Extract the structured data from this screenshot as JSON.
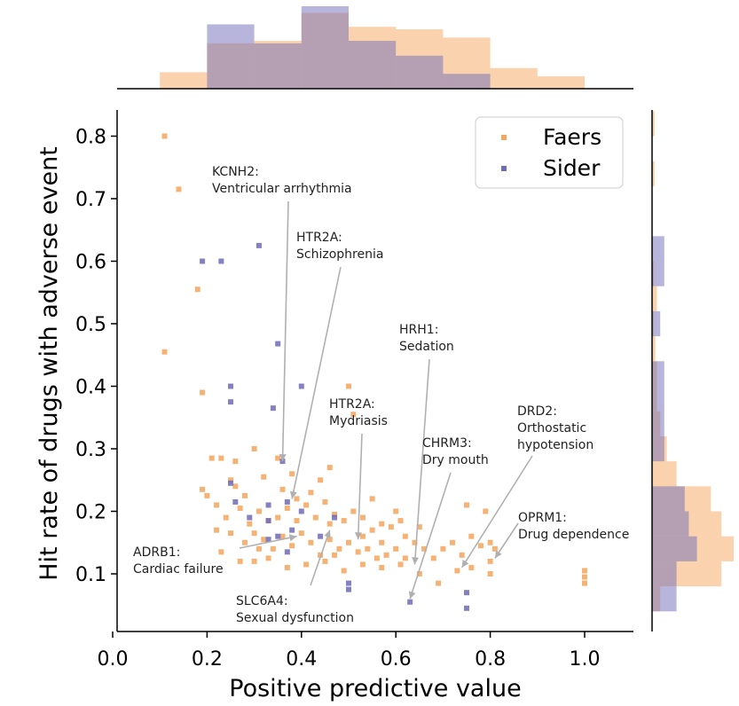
{
  "chart_data": {
    "type": "scatter",
    "xlabel": "Positive predictive value",
    "ylabel": "Hit rate of drugs with adverse event",
    "xlim": [
      0.0,
      1.1
    ],
    "ylim": [
      0.05,
      0.85
    ],
    "x_ticks": [
      "0.0",
      "0.2",
      "0.4",
      "0.6",
      "0.8",
      "1.0"
    ],
    "y_ticks": [
      "0.1",
      "0.2",
      "0.3",
      "0.4",
      "0.5",
      "0.6",
      "0.7",
      "0.8"
    ],
    "grid": false,
    "legend_position": "top-right",
    "series": [
      {
        "name": "Faers",
        "color": "#f5a55c",
        "points": [
          [
            0.11,
            0.8
          ],
          [
            0.14,
            0.715
          ],
          [
            0.18,
            0.555
          ],
          [
            0.11,
            0.455
          ],
          [
            0.19,
            0.39
          ],
          [
            0.21,
            0.285
          ],
          [
            0.23,
            0.285
          ],
          [
            0.25,
            0.25
          ],
          [
            0.26,
            0.28
          ],
          [
            0.28,
            0.225
          ],
          [
            0.3,
            0.3
          ],
          [
            0.32,
            0.255
          ],
          [
            0.35,
            0.285
          ],
          [
            0.38,
            0.26
          ],
          [
            0.44,
            0.25
          ],
          [
            0.46,
            0.27
          ],
          [
            0.5,
            0.4
          ],
          [
            0.51,
            0.355
          ],
          [
            0.2,
            0.225
          ],
          [
            0.22,
            0.21
          ],
          [
            0.24,
            0.19
          ],
          [
            0.27,
            0.205
          ],
          [
            0.29,
            0.18
          ],
          [
            0.31,
            0.2
          ],
          [
            0.33,
            0.185
          ],
          [
            0.35,
            0.19
          ],
          [
            0.37,
            0.205
          ],
          [
            0.39,
            0.185
          ],
          [
            0.41,
            0.21
          ],
          [
            0.43,
            0.19
          ],
          [
            0.45,
            0.215
          ],
          [
            0.47,
            0.195
          ],
          [
            0.49,
            0.185
          ],
          [
            0.51,
            0.2
          ],
          [
            0.53,
            0.19
          ],
          [
            0.55,
            0.17
          ],
          [
            0.57,
            0.18
          ],
          [
            0.59,
            0.175
          ],
          [
            0.61,
            0.185
          ],
          [
            0.22,
            0.17
          ],
          [
            0.25,
            0.165
          ],
          [
            0.28,
            0.15
          ],
          [
            0.3,
            0.165
          ],
          [
            0.32,
            0.155
          ],
          [
            0.34,
            0.14
          ],
          [
            0.36,
            0.16
          ],
          [
            0.38,
            0.145
          ],
          [
            0.4,
            0.165
          ],
          [
            0.42,
            0.15
          ],
          [
            0.44,
            0.13
          ],
          [
            0.46,
            0.155
          ],
          [
            0.48,
            0.14
          ],
          [
            0.5,
            0.15
          ],
          [
            0.52,
            0.135
          ],
          [
            0.54,
            0.14
          ],
          [
            0.56,
            0.125
          ],
          [
            0.58,
            0.13
          ],
          [
            0.6,
            0.14
          ],
          [
            0.62,
            0.125
          ],
          [
            0.64,
            0.15
          ],
          [
            0.66,
            0.14
          ],
          [
            0.68,
            0.125
          ],
          [
            0.7,
            0.14
          ],
          [
            0.72,
            0.15
          ],
          [
            0.74,
            0.13
          ],
          [
            0.76,
            0.16
          ],
          [
            0.78,
            0.145
          ],
          [
            0.8,
            0.15
          ],
          [
            0.81,
            0.14
          ],
          [
            0.3,
            0.12
          ],
          [
            0.33,
            0.125
          ],
          [
            0.37,
            0.11
          ],
          [
            0.41,
            0.115
          ],
          [
            0.45,
            0.12
          ],
          [
            0.49,
            0.105
          ],
          [
            0.53,
            0.115
          ],
          [
            0.57,
            0.11
          ],
          [
            0.61,
            0.115
          ],
          [
            0.65,
            0.1
          ],
          [
            0.69,
            0.085
          ],
          [
            0.73,
            0.105
          ],
          [
            0.76,
            0.11
          ],
          [
            0.8,
            0.12
          ],
          [
            0.55,
            0.22
          ],
          [
            0.6,
            0.2
          ],
          [
            0.75,
            0.21
          ],
          [
            0.79,
            0.2
          ],
          [
            0.62,
            0.16
          ],
          [
            0.46,
            0.18
          ],
          [
            0.42,
            0.23
          ],
          [
            0.36,
            0.235
          ],
          [
            0.26,
            0.24
          ],
          [
            0.39,
            0.22
          ],
          [
            0.53,
            0.16
          ],
          [
            0.57,
            0.15
          ],
          [
            1.0,
            0.105
          ],
          [
            1.0,
            0.095
          ],
          [
            1.0,
            0.085
          ],
          [
            0.8,
            0.1
          ],
          [
            0.47,
            0.13
          ],
          [
            0.27,
            0.12
          ],
          [
            0.31,
            0.14
          ],
          [
            0.23,
            0.135
          ],
          [
            0.19,
            0.235
          ],
          [
            0.65,
            0.175
          ]
        ]
      },
      {
        "name": "Sider",
        "color": "#6f6bb8",
        "points": [
          [
            0.19,
            0.6
          ],
          [
            0.23,
            0.6
          ],
          [
            0.31,
            0.625
          ],
          [
            0.35,
            0.468
          ],
          [
            0.4,
            0.4
          ],
          [
            0.25,
            0.4
          ],
          [
            0.25,
            0.375
          ],
          [
            0.34,
            0.365
          ],
          [
            0.36,
            0.28
          ],
          [
            0.25,
            0.245
          ],
          [
            0.33,
            0.21
          ],
          [
            0.37,
            0.215
          ],
          [
            0.4,
            0.2
          ],
          [
            0.33,
            0.185
          ],
          [
            0.38,
            0.17
          ],
          [
            0.35,
            0.16
          ],
          [
            0.26,
            0.215
          ],
          [
            0.29,
            0.19
          ],
          [
            0.47,
            0.19
          ],
          [
            0.44,
            0.16
          ],
          [
            0.5,
            0.085
          ],
          [
            0.5,
            0.075
          ],
          [
            0.63,
            0.055
          ],
          [
            0.75,
            0.07
          ],
          [
            0.75,
            0.045
          ],
          [
            0.33,
            0.155
          ],
          [
            0.37,
            0.135
          ]
        ]
      }
    ],
    "annotations": [
      {
        "lines": [
          "KCNH2:",
          "Ventricular arrhythmia"
        ],
        "target": [
          0.36,
          0.28
        ]
      },
      {
        "lines": [
          "HTR2A:",
          "Schizophrenia"
        ],
        "target": [
          0.38,
          0.22
        ]
      },
      {
        "lines": [
          "HRH1:",
          "Sedation"
        ],
        "target": [
          0.64,
          0.115
        ]
      },
      {
        "lines": [
          "HTR2A:",
          "Mydriasis"
        ],
        "target": [
          0.52,
          0.155
        ]
      },
      {
        "lines": [
          "CHRM3:",
          "Dry mouth"
        ],
        "target": [
          0.63,
          0.06
        ]
      },
      {
        "lines": [
          "DRD2:",
          "Orthostatic",
          "hypotension"
        ],
        "target": [
          0.74,
          0.11
        ]
      },
      {
        "lines": [
          "OPRM1:",
          "Drug dependence"
        ],
        "target": [
          0.81,
          0.125
        ]
      },
      {
        "lines": [
          "ADRB1:",
          "Cardiac failure"
        ],
        "target": [
          0.39,
          0.16
        ]
      },
      {
        "lines": [
          "SLC6A4:",
          "Sexual dysfunction"
        ],
        "target": [
          0.46,
          0.17
        ]
      }
    ],
    "marginal_x": {
      "bin_edges": [
        0.1,
        0.2,
        0.3,
        0.4,
        0.5,
        0.6,
        0.7,
        0.8,
        0.9,
        1.0
      ],
      "Faers": [
        0.2,
        0.55,
        0.58,
        0.92,
        0.75,
        0.72,
        0.62,
        0.25,
        0.15
      ],
      "Sider": [
        0.0,
        0.78,
        0.55,
        1.0,
        0.58,
        0.4,
        0.18,
        0.0,
        0.0
      ]
    },
    "marginal_y": {
      "bin_edges": [
        0.04,
        0.08,
        0.12,
        0.16,
        0.2,
        0.24,
        0.28,
        0.32,
        0.36,
        0.4,
        0.44,
        0.48,
        0.52,
        0.56,
        0.6,
        0.64,
        0.68,
        0.72,
        0.76,
        0.8,
        0.84
      ],
      "Faers": [
        0.1,
        0.85,
        1.0,
        0.85,
        0.72,
        0.3,
        0.18,
        0.1,
        0.06,
        0.06,
        0.04,
        0.02,
        0.06,
        0.02,
        0.0,
        0.0,
        0.0,
        0.03,
        0.0,
        0.03
      ],
      "Sider": [
        0.3,
        0.3,
        0.55,
        0.45,
        0.4,
        0.0,
        0.15,
        0.15,
        0.15,
        0.15,
        0.0,
        0.1,
        0.0,
        0.15,
        0.15,
        0.0,
        0.0,
        0.0,
        0.0,
        0.0
      ]
    }
  }
}
